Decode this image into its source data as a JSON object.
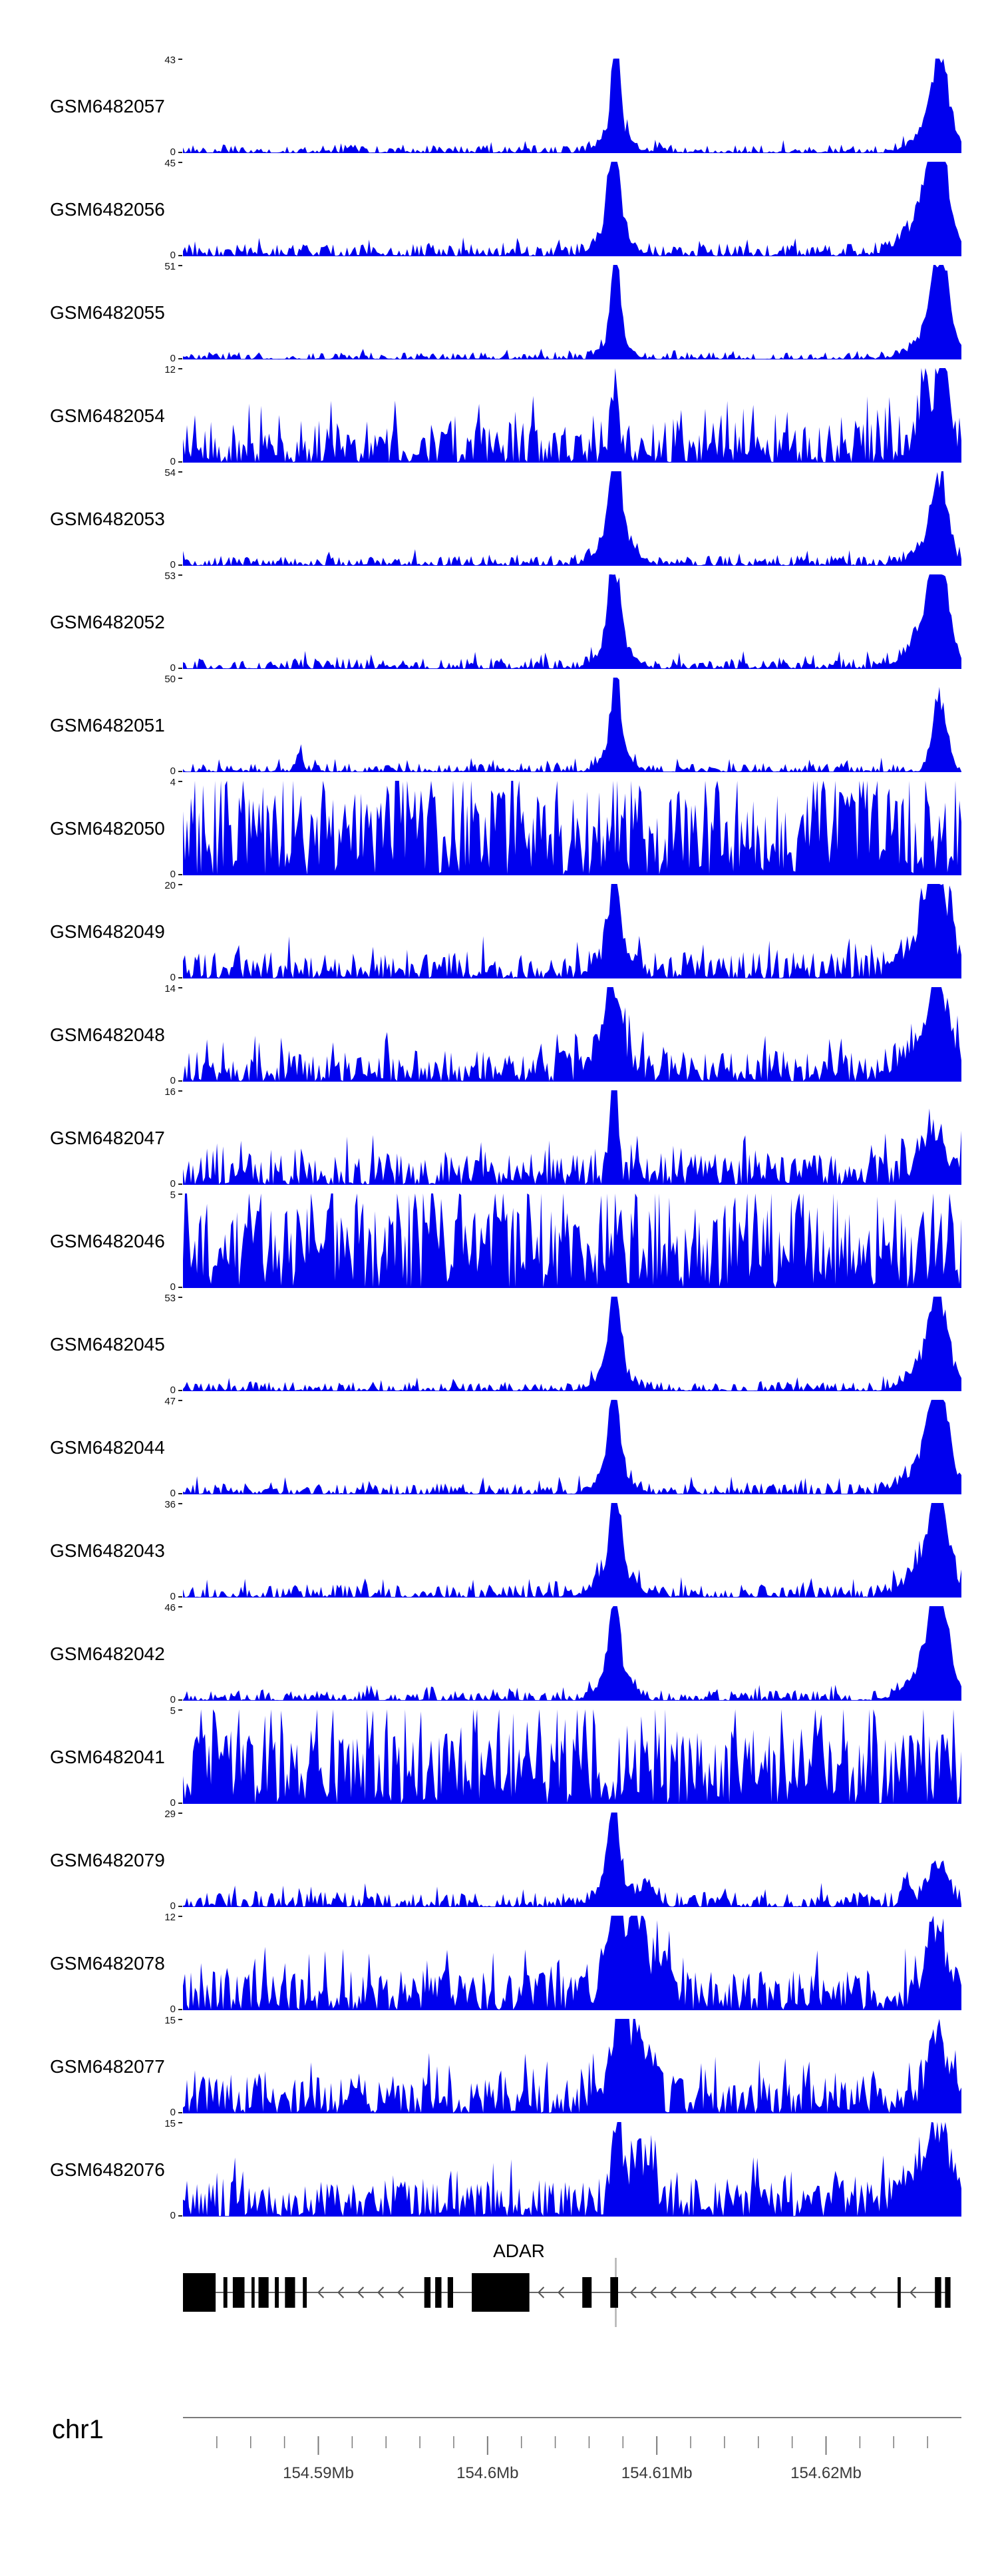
{
  "page": {
    "background": "#ffffff"
  },
  "colors": {
    "signal": "#0000EE",
    "gene": "#000000",
    "intron_line": "#333333",
    "arrow": "#555555",
    "axis": "#7a7a7a",
    "marker": "#b3b3b3",
    "tick_label": "#3a3a3a"
  },
  "chart_data": {
    "type": "area",
    "title": "",
    "x_axis": {
      "chromosome": "chr1",
      "unit": "Mb",
      "range_mb": [
        154.582,
        154.628
      ],
      "major_ticks": [
        154.59,
        154.6,
        154.61,
        154.62
      ],
      "tick_labels": [
        "154.59Mb",
        "154.6Mb",
        "154.61Mb",
        "154.62Mb"
      ],
      "minor_tick_step": 0.002
    },
    "tracks": [
      {
        "label": "GSM6482057",
        "ymin": 0,
        "ymax": 43,
        "profile": {
          "noise": 0.09,
          "expo": 2.2,
          "tall": 0.03,
          "peaks": [
            [
              0.556,
              0.005,
              1.0
            ],
            [
              0.556,
              0.016,
              0.3
            ],
            [
              0.972,
              0.009,
              0.92
            ],
            [
              0.966,
              0.022,
              0.32
            ]
          ]
        }
      },
      {
        "label": "GSM6482056",
        "ymin": 0,
        "ymax": 45,
        "profile": {
          "noise": 0.13,
          "expo": 2.0,
          "tall": 0.05,
          "peaks": [
            [
              0.553,
              0.006,
              1.0
            ],
            [
              0.553,
              0.018,
              0.38
            ],
            [
              0.968,
              0.012,
              1.0
            ],
            [
              0.956,
              0.028,
              0.42
            ]
          ]
        }
      },
      {
        "label": "GSM6482055",
        "ymin": 0,
        "ymax": 51,
        "profile": {
          "noise": 0.08,
          "expo": 2.2,
          "tall": 0.03,
          "peaks": [
            [
              0.556,
              0.005,
              1.0
            ],
            [
              0.556,
              0.014,
              0.3
            ],
            [
              0.972,
              0.01,
              0.95
            ],
            [
              0.966,
              0.024,
              0.34
            ]
          ]
        }
      },
      {
        "label": "GSM6482054",
        "ymin": 0,
        "ymax": 12,
        "profile": {
          "noise": 0.45,
          "expo": 1.5,
          "tall": 0.1,
          "peaks": [
            [
              0.556,
              0.004,
              1.0
            ],
            [
              0.953,
              0.005,
              0.78
            ],
            [
              0.975,
              0.006,
              1.0
            ],
            [
              0.958,
              0.02,
              0.3
            ]
          ]
        }
      },
      {
        "label": "GSM6482053",
        "ymin": 0,
        "ymax": 54,
        "profile": {
          "noise": 0.11,
          "expo": 2.0,
          "tall": 0.05,
          "peaks": [
            [
              0.556,
              0.007,
              1.0
            ],
            [
              0.556,
              0.02,
              0.35
            ],
            [
              0.972,
              0.009,
              0.72
            ],
            [
              0.964,
              0.02,
              0.3
            ]
          ]
        }
      },
      {
        "label": "GSM6482052",
        "ymin": 0,
        "ymax": 53,
        "profile": {
          "noise": 0.12,
          "expo": 2.0,
          "tall": 0.05,
          "peaks": [
            [
              0.554,
              0.006,
              1.0
            ],
            [
              0.554,
              0.018,
              0.35
            ],
            [
              0.97,
              0.011,
              0.9
            ],
            [
              0.96,
              0.025,
              0.4
            ]
          ]
        }
      },
      {
        "label": "GSM6482051",
        "ymin": 0,
        "ymax": 50,
        "profile": {
          "noise": 0.1,
          "expo": 2.1,
          "tall": 0.04,
          "peaks": [
            [
              0.556,
              0.005,
              1.0
            ],
            [
              0.556,
              0.016,
              0.3
            ],
            [
              0.972,
              0.009,
              0.85
            ],
            [
              0.15,
              0.004,
              0.2
            ]
          ]
        }
      },
      {
        "label": "GSM6482050",
        "ymin": 0,
        "ymax": 4,
        "profile": {
          "noise": 0.9,
          "expo": 1.1,
          "tall": 0.18,
          "peaks": [
            [
              0.556,
              0.01,
              0.2
            ]
          ]
        }
      },
      {
        "label": "GSM6482049",
        "ymin": 0,
        "ymax": 20,
        "profile": {
          "noise": 0.28,
          "expo": 1.7,
          "tall": 0.07,
          "peaks": [
            [
              0.554,
              0.006,
              1.0
            ],
            [
              0.554,
              0.02,
              0.3
            ],
            [
              0.968,
              0.014,
              0.85
            ],
            [
              0.958,
              0.03,
              0.3
            ]
          ]
        }
      },
      {
        "label": "GSM6482048",
        "ymin": 0,
        "ymax": 14,
        "profile": {
          "noise": 0.33,
          "expo": 1.6,
          "tall": 0.08,
          "peaks": [
            [
              0.551,
              0.008,
              0.95
            ],
            [
              0.551,
              0.02,
              0.3
            ],
            [
              0.968,
              0.013,
              0.8
            ],
            [
              0.958,
              0.03,
              0.3
            ]
          ]
        }
      },
      {
        "label": "GSM6482047",
        "ymin": 0,
        "ymax": 16,
        "profile": {
          "noise": 0.34,
          "expo": 1.6,
          "tall": 0.08,
          "peaks": [
            [
              0.553,
              0.005,
              1.0
            ],
            [
              0.963,
              0.018,
              0.5
            ]
          ]
        }
      },
      {
        "label": "GSM6482046",
        "ymin": 0,
        "ymax": 5,
        "profile": {
          "noise": 0.85,
          "expo": 1.15,
          "tall": 0.16,
          "peaks": [
            [
              0.79,
              0.003,
              0.45
            ]
          ]
        }
      },
      {
        "label": "GSM6482045",
        "ymin": 0,
        "ymax": 53,
        "profile": {
          "noise": 0.1,
          "expo": 2.1,
          "tall": 0.04,
          "peaks": [
            [
              0.554,
              0.006,
              1.0
            ],
            [
              0.554,
              0.018,
              0.33
            ],
            [
              0.97,
              0.01,
              0.9
            ],
            [
              0.962,
              0.024,
              0.35
            ]
          ]
        }
      },
      {
        "label": "GSM6482044",
        "ymin": 0,
        "ymax": 47,
        "profile": {
          "noise": 0.12,
          "expo": 2.0,
          "tall": 0.05,
          "peaks": [
            [
              0.554,
              0.006,
              1.0
            ],
            [
              0.554,
              0.018,
              0.33
            ],
            [
              0.97,
              0.011,
              0.95
            ],
            [
              0.96,
              0.026,
              0.4
            ]
          ]
        }
      },
      {
        "label": "GSM6482043",
        "ymin": 0,
        "ymax": 36,
        "profile": {
          "noise": 0.14,
          "expo": 1.9,
          "tall": 0.06,
          "peaks": [
            [
              0.556,
              0.006,
              1.0
            ],
            [
              0.556,
              0.02,
              0.35
            ],
            [
              0.97,
              0.011,
              0.95
            ],
            [
              0.96,
              0.026,
              0.4
            ]
          ]
        }
      },
      {
        "label": "GSM6482042",
        "ymin": 0,
        "ymax": 46,
        "profile": {
          "noise": 0.11,
          "expo": 2.0,
          "tall": 0.05,
          "peaks": [
            [
              0.554,
              0.006,
              1.0
            ],
            [
              0.554,
              0.018,
              0.33
            ],
            [
              0.97,
              0.011,
              0.92
            ],
            [
              0.96,
              0.026,
              0.38
            ]
          ]
        }
      },
      {
        "label": "GSM6482041",
        "ymin": 0,
        "ymax": 5,
        "profile": {
          "noise": 0.8,
          "expo": 1.2,
          "tall": 0.15,
          "peaks": []
        }
      },
      {
        "label": "GSM6482079",
        "ymin": 0,
        "ymax": 29,
        "profile": {
          "noise": 0.16,
          "expo": 1.9,
          "tall": 0.06,
          "peaks": [
            [
              0.553,
              0.006,
              1.0
            ],
            [
              0.553,
              0.018,
              0.3
            ],
            [
              0.6,
              0.008,
              0.25
            ],
            [
              0.97,
              0.012,
              0.5
            ],
            [
              0.93,
              0.006,
              0.28
            ]
          ]
        }
      },
      {
        "label": "GSM6482078",
        "ymin": 0,
        "ymax": 12,
        "profile": {
          "noise": 0.42,
          "expo": 1.3,
          "tall": 0.1,
          "peaks": [
            [
              0.555,
              0.012,
              0.8
            ],
            [
              0.585,
              0.012,
              0.9
            ],
            [
              0.62,
              0.01,
              0.45
            ],
            [
              0.968,
              0.015,
              0.72
            ]
          ]
        }
      },
      {
        "label": "GSM6482077",
        "ymin": 0,
        "ymax": 15,
        "profile": {
          "noise": 0.4,
          "expo": 1.4,
          "tall": 0.1,
          "peaks": [
            [
              0.558,
              0.01,
              0.95
            ],
            [
              0.578,
              0.012,
              0.7
            ],
            [
              0.6,
              0.008,
              0.4
            ],
            [
              0.968,
              0.013,
              0.68
            ]
          ]
        }
      },
      {
        "label": "GSM6482076",
        "ymin": 0,
        "ymax": 15,
        "profile": {
          "noise": 0.4,
          "expo": 1.4,
          "tall": 0.1,
          "peaks": [
            [
              0.558,
              0.006,
              1.0
            ],
            [
              0.585,
              0.015,
              0.5
            ],
            [
              0.95,
              0.025,
              0.5
            ],
            [
              0.975,
              0.01,
              0.6
            ]
          ]
        }
      }
    ],
    "gene_track": {
      "gene": "ADAR",
      "arrow_direction": "left",
      "marker_fraction": 0.556,
      "exons": [
        [
          0.0,
          0.042,
          1
        ],
        [
          0.052,
          0.005,
          0
        ],
        [
          0.064,
          0.015,
          0
        ],
        [
          0.088,
          0.004,
          0
        ],
        [
          0.097,
          0.013,
          0
        ],
        [
          0.118,
          0.005,
          0
        ],
        [
          0.131,
          0.013,
          0
        ],
        [
          0.154,
          0.005,
          0
        ],
        [
          0.31,
          0.008,
          0
        ],
        [
          0.324,
          0.008,
          0
        ],
        [
          0.34,
          0.007,
          0
        ],
        [
          0.371,
          0.074,
          1
        ],
        [
          0.513,
          0.012,
          0
        ],
        [
          0.549,
          0.01,
          0
        ],
        [
          0.918,
          0.004,
          0
        ],
        [
          0.966,
          0.008,
          0
        ],
        [
          0.979,
          0.007,
          0
        ]
      ]
    }
  }
}
